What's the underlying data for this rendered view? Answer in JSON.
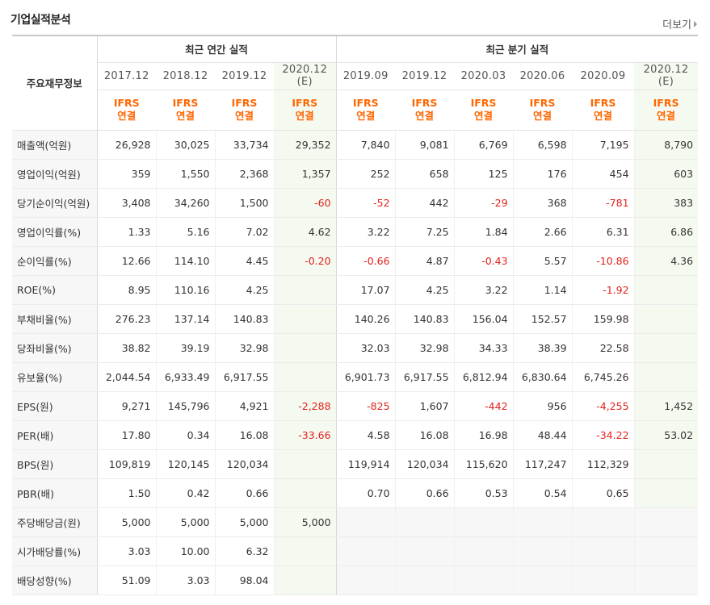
{
  "title": "기업실적분석",
  "more_label": "더보기",
  "header": {
    "row_label": "주요재무정보",
    "annual_label": "최근 연간 실적",
    "quarter_label": "최근 분기 실적",
    "annual_periods": [
      "2017.12",
      "2018.12",
      "2019.12",
      "2020.12"
    ],
    "quarter_periods": [
      "2019.09",
      "2019.12",
      "2020.03",
      "2020.06",
      "2020.09",
      "2020.12"
    ],
    "estimate_mark": "(E)",
    "ifrs_label": "IFRS",
    "consolidated_label": "연결"
  },
  "rows": [
    {
      "label": "매출액(억원)",
      "values": [
        "26,928",
        "30,025",
        "33,734",
        "29,352",
        "7,840",
        "9,081",
        "6,769",
        "6,598",
        "7,195",
        "8,790"
      ]
    },
    {
      "label": "영업이익(억원)",
      "values": [
        "359",
        "1,550",
        "2,368",
        "1,357",
        "252",
        "658",
        "125",
        "176",
        "454",
        "603"
      ]
    },
    {
      "label": "당기순이익(억원)",
      "values": [
        "3,408",
        "34,260",
        "1,500",
        "-60",
        "-52",
        "442",
        "-29",
        "368",
        "-781",
        "383"
      ]
    },
    {
      "label": "영업이익률(%)",
      "values": [
        "1.33",
        "5.16",
        "7.02",
        "4.62",
        "3.22",
        "7.25",
        "1.84",
        "2.66",
        "6.31",
        "6.86"
      ]
    },
    {
      "label": "순이익률(%)",
      "values": [
        "12.66",
        "114.10",
        "4.45",
        "-0.20",
        "-0.66",
        "4.87",
        "-0.43",
        "5.57",
        "-10.86",
        "4.36"
      ]
    },
    {
      "label": "ROE(%)",
      "values": [
        "8.95",
        "110.16",
        "4.25",
        "",
        "17.07",
        "4.25",
        "3.22",
        "1.14",
        "-1.92",
        ""
      ]
    },
    {
      "label": "부채비율(%)",
      "values": [
        "276.23",
        "137.14",
        "140.83",
        "",
        "140.26",
        "140.83",
        "156.04",
        "152.57",
        "159.98",
        ""
      ]
    },
    {
      "label": "당좌비율(%)",
      "values": [
        "38.82",
        "39.19",
        "32.98",
        "",
        "32.03",
        "32.98",
        "34.33",
        "38.39",
        "22.58",
        ""
      ]
    },
    {
      "label": "유보율(%)",
      "values": [
        "2,044.54",
        "6,933.49",
        "6,917.55",
        "",
        "6,901.73",
        "6,917.55",
        "6,812.94",
        "6,830.64",
        "6,745.26",
        ""
      ]
    },
    {
      "label": "EPS(원)",
      "values": [
        "9,271",
        "145,796",
        "4,921",
        "-2,288",
        "-825",
        "1,607",
        "-442",
        "956",
        "-4,255",
        "1,452"
      ]
    },
    {
      "label": "PER(배)",
      "values": [
        "17.80",
        "0.34",
        "16.08",
        "-33.66",
        "4.58",
        "16.08",
        "16.98",
        "48.44",
        "-34.22",
        "53.02"
      ]
    },
    {
      "label": "BPS(원)",
      "values": [
        "109,819",
        "120,145",
        "120,034",
        "",
        "119,914",
        "120,034",
        "115,620",
        "117,247",
        "112,329",
        ""
      ]
    },
    {
      "label": "PBR(배)",
      "values": [
        "1.50",
        "0.42",
        "0.66",
        "",
        "0.70",
        "0.66",
        "0.53",
        "0.54",
        "0.65",
        ""
      ]
    },
    {
      "label": "주당배당금(원)",
      "values": [
        "5,000",
        "5,000",
        "5,000",
        "5,000",
        "",
        "",
        "",
        "",
        "",
        ""
      ]
    },
    {
      "label": "시가배당률(%)",
      "values": [
        "3.03",
        "10.00",
        "6.32",
        "",
        "",
        "",
        "",
        "",
        "",
        ""
      ]
    },
    {
      "label": "배당성향(%)",
      "values": [
        "51.09",
        "3.03",
        "98.04",
        "",
        "",
        "",
        "",
        "",
        "",
        ""
      ]
    }
  ],
  "colors": {
    "negative": "#e2211c",
    "ifrs": "#ff6600",
    "estimate": "#4a9a2a"
  }
}
